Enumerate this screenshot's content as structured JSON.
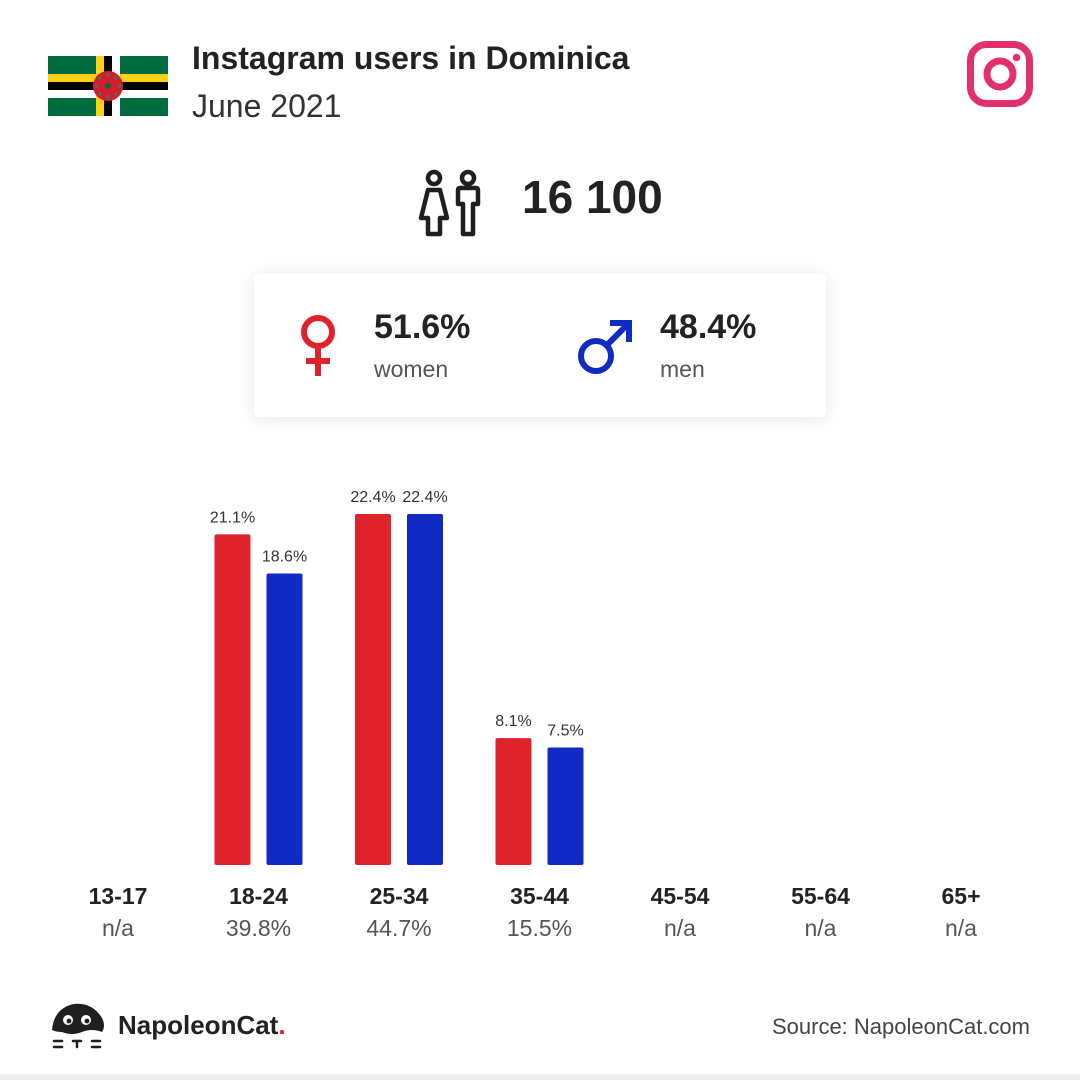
{
  "header": {
    "title": "Instagram users in Dominica",
    "subtitle": "June 2021",
    "flag_icon": "dominica-flag-icon",
    "platform_icon": "instagram-icon"
  },
  "total": {
    "icon": "people-icon",
    "value": "16 100"
  },
  "gender": {
    "women": {
      "icon": "female-symbol-icon",
      "percent": "51.6%",
      "label": "women",
      "color": "#e0222a"
    },
    "men": {
      "icon": "male-symbol-icon",
      "percent": "48.4%",
      "label": "men",
      "color": "#0f2bc4"
    }
  },
  "chart_data": {
    "type": "bar",
    "categories": [
      "13-17",
      "18-24",
      "25-34",
      "35-44",
      "45-54",
      "55-64",
      "65+"
    ],
    "category_totals": [
      "n/a",
      "39.8%",
      "44.7%",
      "15.5%",
      "n/a",
      "n/a",
      "n/a"
    ],
    "series": [
      {
        "color": "#e0222a",
        "values": [
          null,
          21.1,
          22.4,
          8.1,
          null,
          null,
          null
        ],
        "labels": [
          "",
          "21.1%",
          "22.4%",
          "8.1%",
          "",
          "",
          ""
        ]
      },
      {
        "color": "#0f2bc4",
        "values": [
          null,
          18.6,
          22.4,
          7.5,
          null,
          null,
          null
        ],
        "labels": [
          "",
          "18.6%",
          "22.4%",
          "7.5%",
          "",
          "",
          ""
        ]
      }
    ],
    "ylim": [
      0,
      22.4
    ],
    "grid": false
  },
  "footer": {
    "brand_icon": "napoleoncat-logo-icon",
    "brand_name": "NapoleonCat",
    "brand_dot": ".",
    "source": "Source: NapoleonCat.com"
  }
}
